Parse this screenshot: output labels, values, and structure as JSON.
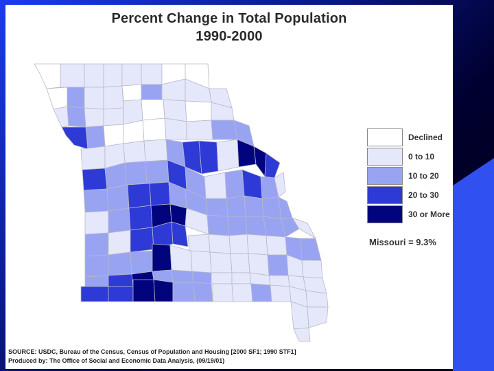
{
  "title": {
    "line1": "Percent Change in Total Population",
    "line2": "1990-2000"
  },
  "legend": {
    "items": [
      {
        "label": "Declined",
        "color": "#ffffff"
      },
      {
        "label": "0 to 10",
        "color": "#e4e8fa"
      },
      {
        "label": "10 to 20",
        "color": "#98a4f2"
      },
      {
        "label": "20 to 30",
        "color": "#2e3ad6"
      },
      {
        "label": "30 or More",
        "color": "#02047e"
      }
    ]
  },
  "state_average": "Missouri = 9.3%",
  "footer": {
    "source": "SOURCE:  USDC, Bureau of the Census, Census of Population and Housing [2000 SF1; 1990 STF1]",
    "produced_by": "Produced by:  The Office of Social and Economic Data Analysis, (09/19/01)"
  }
}
